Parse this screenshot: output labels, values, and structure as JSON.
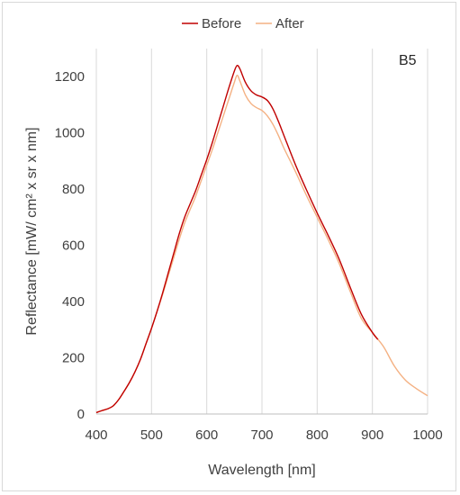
{
  "chart_data": {
    "type": "line",
    "title": "",
    "annotation": "B5",
    "xlabel": "Wavelength [nm]",
    "ylabel": "Reflectance [mW/ cm² x sr x nm]",
    "xlim": [
      400,
      1000
    ],
    "ylim": [
      0,
      1300
    ],
    "xticks": [
      400,
      500,
      600,
      700,
      800,
      900,
      1000
    ],
    "yticks": [
      0,
      200,
      400,
      600,
      800,
      1000,
      1200
    ],
    "grid": "vertical",
    "legend_position": "top",
    "series": [
      {
        "name": "Before",
        "color": "#c00000",
        "x": [
          400,
          410,
          420,
          430,
          440,
          450,
          460,
          470,
          480,
          490,
          500,
          510,
          520,
          530,
          540,
          550,
          560,
          570,
          580,
          590,
          600,
          610,
          620,
          630,
          640,
          650,
          655,
          660,
          670,
          680,
          690,
          700,
          710,
          720,
          730,
          740,
          760,
          780,
          800,
          820,
          840,
          860,
          880,
          900,
          910
        ],
        "y": [
          5,
          12,
          18,
          28,
          50,
          80,
          112,
          150,
          195,
          250,
          305,
          365,
          430,
          500,
          570,
          640,
          700,
          748,
          795,
          850,
          905,
          965,
          1030,
          1095,
          1160,
          1220,
          1240,
          1228,
          1180,
          1150,
          1135,
          1128,
          1115,
          1085,
          1040,
          990,
          890,
          800,
          715,
          635,
          550,
          450,
          355,
          290,
          265
        ]
      },
      {
        "name": "After",
        "color": "#f4b183",
        "x": [
          400,
          410,
          420,
          430,
          440,
          450,
          460,
          470,
          480,
          490,
          500,
          510,
          520,
          530,
          540,
          550,
          560,
          570,
          580,
          590,
          600,
          610,
          620,
          630,
          640,
          650,
          655,
          660,
          670,
          680,
          690,
          700,
          710,
          720,
          730,
          740,
          760,
          780,
          800,
          820,
          840,
          860,
          880,
          900,
          920,
          940,
          960,
          980,
          1000
        ],
        "y": [
          5,
          12,
          18,
          28,
          50,
          80,
          112,
          150,
          195,
          250,
          305,
          365,
          425,
          490,
          555,
          620,
          680,
          728,
          775,
          830,
          885,
          940,
          1000,
          1060,
          1120,
          1180,
          1205,
          1185,
          1135,
          1105,
          1090,
          1080,
          1060,
          1030,
          990,
          945,
          865,
          780,
          700,
          620,
          535,
          435,
          340,
          290,
          240,
          170,
          120,
          90,
          65
        ]
      }
    ]
  }
}
